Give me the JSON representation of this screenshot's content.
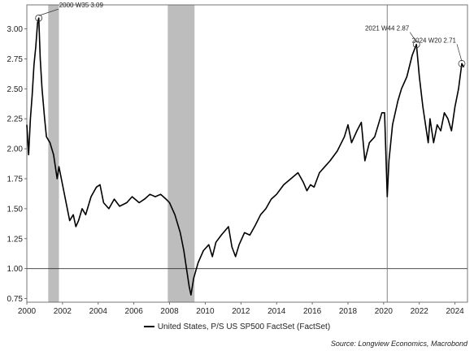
{
  "chart_data": {
    "type": "line",
    "title": "",
    "xlabel": "",
    "ylabel": "",
    "xlim": [
      2000,
      2024.7
    ],
    "ylim": [
      0.72,
      3.2
    ],
    "x_ticks": [
      2000,
      2002,
      2004,
      2006,
      2008,
      2010,
      2012,
      2014,
      2016,
      2018,
      2020,
      2022,
      2024
    ],
    "x_tick_labels": [
      "2000",
      "2002",
      "2004",
      "2006",
      "2008",
      "2010",
      "2012",
      "2014",
      "2016",
      "2018",
      "2020",
      "2022",
      "2024"
    ],
    "y_ticks": [
      0.75,
      1.0,
      1.25,
      1.5,
      1.75,
      2.0,
      2.25,
      2.5,
      2.75,
      3.0
    ],
    "y_tick_labels": [
      "0.75",
      "1.00",
      "1.25",
      "1.50",
      "1.75",
      "2.00",
      "2.25",
      "2.50",
      "2.75",
      "3.00"
    ],
    "grid": false,
    "legend_position": "bottom-center",
    "recession_bands": [
      [
        2001.2,
        2001.8
      ],
      [
        2007.9,
        2009.4
      ]
    ],
    "reference_lines": {
      "horizontal": 1.0,
      "vertical": 2020.2
    },
    "series": [
      {
        "name": "United States, P/S US SP500 FactSet (FactSet)",
        "color": "#000000",
        "x": [
          2000.0,
          2000.1,
          2000.2,
          2000.3,
          2000.4,
          2000.5,
          2000.6,
          2000.67,
          2000.75,
          2000.85,
          2001.0,
          2001.1,
          2001.3,
          2001.5,
          2001.7,
          2001.8,
          2002.0,
          2002.2,
          2002.4,
          2002.6,
          2002.75,
          2002.9,
          2003.1,
          2003.3,
          2003.6,
          2003.9,
          2004.1,
          2004.3,
          2004.6,
          2004.9,
          2005.2,
          2005.6,
          2005.9,
          2006.3,
          2006.6,
          2006.9,
          2007.2,
          2007.5,
          2007.8,
          2008.0,
          2008.3,
          2008.6,
          2008.8,
          2008.95,
          2009.1,
          2009.2,
          2009.35,
          2009.6,
          2009.9,
          2010.2,
          2010.4,
          2010.6,
          2010.9,
          2011.3,
          2011.5,
          2011.7,
          2011.9,
          2012.2,
          2012.5,
          2012.8,
          2013.1,
          2013.4,
          2013.7,
          2014.0,
          2014.4,
          2014.8,
          2015.2,
          2015.5,
          2015.7,
          2015.9,
          2016.1,
          2016.4,
          2016.7,
          2017.0,
          2017.4,
          2017.8,
          2018.0,
          2018.2,
          2018.5,
          2018.75,
          2018.95,
          2019.2,
          2019.5,
          2019.9,
          2020.05,
          2020.2,
          2020.3,
          2020.5,
          2020.8,
          2021.0,
          2021.3,
          2021.6,
          2021.84,
          2022.0,
          2022.2,
          2022.4,
          2022.5,
          2022.6,
          2022.8,
          2023.0,
          2023.2,
          2023.4,
          2023.6,
          2023.8,
          2024.0,
          2024.2,
          2024.38,
          2024.5
        ],
        "values": [
          2.2,
          1.95,
          2.25,
          2.45,
          2.7,
          2.85,
          3.05,
          3.09,
          2.75,
          2.5,
          2.25,
          2.1,
          2.05,
          1.95,
          1.75,
          1.85,
          1.7,
          1.55,
          1.4,
          1.45,
          1.35,
          1.4,
          1.5,
          1.45,
          1.6,
          1.68,
          1.7,
          1.55,
          1.5,
          1.58,
          1.52,
          1.55,
          1.6,
          1.55,
          1.58,
          1.62,
          1.6,
          1.62,
          1.58,
          1.55,
          1.45,
          1.3,
          1.15,
          1.0,
          0.85,
          0.78,
          0.92,
          1.05,
          1.15,
          1.2,
          1.1,
          1.22,
          1.28,
          1.35,
          1.18,
          1.1,
          1.2,
          1.3,
          1.28,
          1.36,
          1.45,
          1.5,
          1.58,
          1.62,
          1.7,
          1.75,
          1.8,
          1.72,
          1.65,
          1.7,
          1.68,
          1.8,
          1.85,
          1.9,
          1.98,
          2.1,
          2.2,
          2.05,
          2.15,
          2.22,
          1.9,
          2.05,
          2.1,
          2.3,
          2.3,
          1.6,
          1.9,
          2.2,
          2.4,
          2.5,
          2.6,
          2.78,
          2.87,
          2.6,
          2.35,
          2.15,
          2.05,
          2.25,
          2.05,
          2.2,
          2.15,
          2.3,
          2.25,
          2.15,
          2.35,
          2.5,
          2.71,
          2.68
        ]
      }
    ],
    "annotations": [
      {
        "x": 2000.67,
        "y": 3.09,
        "label": "2000 W35 3.09"
      },
      {
        "x": 2021.84,
        "y": 2.87,
        "label": "2021 W44 2.87"
      },
      {
        "x": 2024.38,
        "y": 2.71,
        "label": "2024 W20 2.71"
      }
    ]
  },
  "legend": {
    "label": "United States, P/S US SP500 FactSet (FactSet)"
  },
  "source": "Source: Longview Economics, Macrobond"
}
